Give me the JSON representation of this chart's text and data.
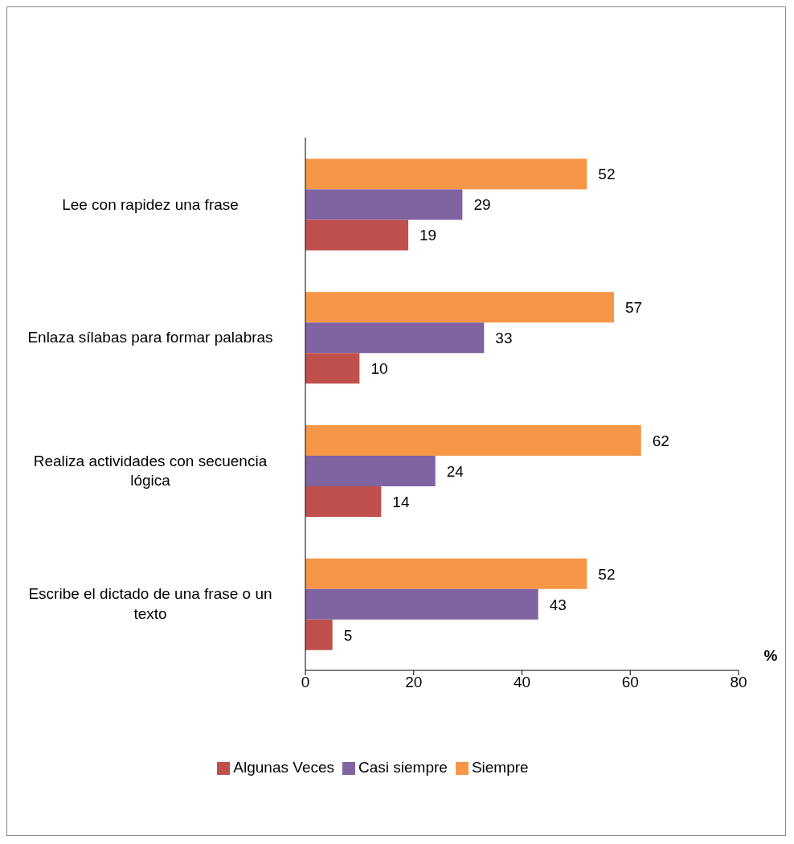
{
  "chart_data": {
    "type": "bar",
    "orientation": "horizontal",
    "xlabel": "%",
    "categories": [
      "Lee con rapidez una frase",
      "Enlaza sílabas para formar palabras",
      "Realiza actividades con secuencia lógica",
      "Escribe el dictado de una frase o un texto"
    ],
    "series": [
      {
        "name": "Siempre",
        "color": "#f79646",
        "values": [
          52,
          57,
          62,
          52
        ]
      },
      {
        "name": "Casi siempre",
        "color": "#8064a2",
        "values": [
          29,
          33,
          24,
          43
        ]
      },
      {
        "name": "Algunas Veces",
        "color": "#c0504d",
        "values": [
          19,
          10,
          14,
          5
        ]
      }
    ],
    "xlim": [
      0,
      80
    ],
    "xticks": [
      0,
      20,
      40,
      60,
      80
    ],
    "grid": false,
    "legend": "bottom",
    "data_labels": true
  }
}
